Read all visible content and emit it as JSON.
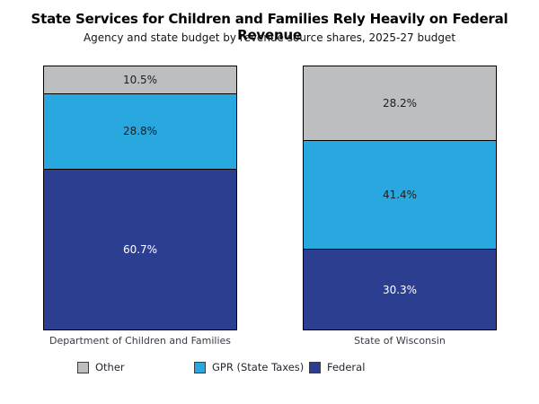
{
  "header": {
    "title": "State Services for Children and Families Rely Heavily on Federal Revenue",
    "subtitle": "Agency and state budget by revenue source shares, 2025-27 budget"
  },
  "chart_data": {
    "type": "bar",
    "subtype": "stacked_100_percent_column",
    "title": "State Services for Children and Families Rely Heavily on Federal Revenue",
    "subtitle": "Agency and state budget by revenue source shares, 2025-27 budget",
    "categories": [
      "Department of Children and Families",
      "State of Wisconsin"
    ],
    "series": [
      {
        "name": "Other",
        "color": "#bcbec0",
        "label_color": "#1e1e1e",
        "values": [
          10.5,
          28.2
        ]
      },
      {
        "name": "GPR (State Taxes)",
        "color": "#29a8e0",
        "label_color": "#1e1e1e",
        "values": [
          28.8,
          41.4
        ]
      },
      {
        "name": "Federal",
        "color": "#2b3e90",
        "label_color": "#ffffff",
        "values": [
          60.7,
          30.3
        ]
      }
    ],
    "value_suffix": "%",
    "stack_order_top_to_bottom": [
      "Other",
      "GPR (State Taxes)",
      "Federal"
    ],
    "ylim": [
      0,
      100
    ],
    "grid": false,
    "axis_lines": false,
    "legend_position": "bottom",
    "bar_border_color": "#000000"
  }
}
